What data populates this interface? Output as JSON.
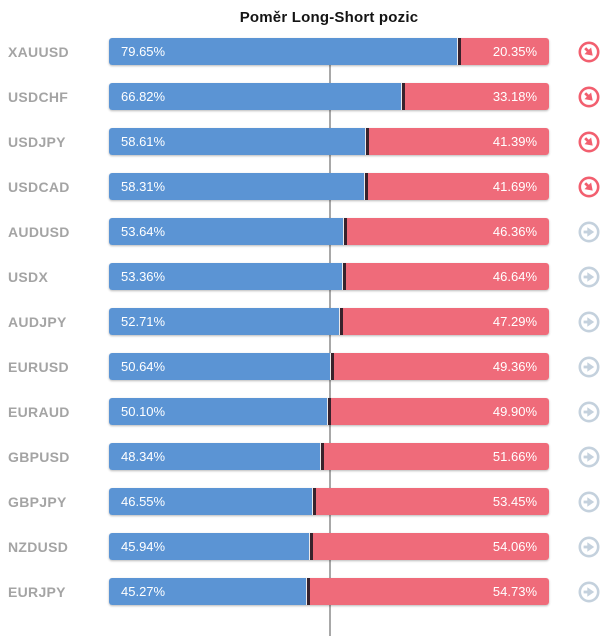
{
  "title": "Poměr Long-Short pozic",
  "colors": {
    "long": "#5b94d4",
    "short": "#ef6b7a",
    "divider": "#38222c",
    "centerline": "#a8a8a8",
    "label": "#a4a4a4",
    "icon_red": "#f25f6f",
    "icon_gray": "#c4d1dd"
  },
  "chart_data": {
    "type": "bar",
    "orientation": "horizontal",
    "stacked": true,
    "title": "Poměr Long-Short pozic",
    "xlim": [
      0,
      100
    ],
    "center_line": 50,
    "grid": false,
    "legend": false,
    "categories": [
      "XAUUSD",
      "USDCHF",
      "USDJPY",
      "USDCAD",
      "AUDUSD",
      "USDX",
      "AUDJPY",
      "EURUSD",
      "EURAUD",
      "GBPUSD",
      "GBPJPY",
      "NZDUSD",
      "EURJPY"
    ],
    "series": [
      {
        "name": "Long",
        "color": "#5b94d4",
        "values": [
          79.65,
          66.82,
          58.61,
          58.31,
          53.64,
          53.36,
          52.71,
          50.64,
          50.1,
          48.34,
          46.55,
          45.94,
          45.27
        ]
      },
      {
        "name": "Short",
        "color": "#ef6b7a",
        "values": [
          20.35,
          33.18,
          41.39,
          41.69,
          46.36,
          46.64,
          47.29,
          49.36,
          49.9,
          51.66,
          53.45,
          54.06,
          54.73
        ]
      }
    ],
    "rows": [
      {
        "symbol": "XAUUSD",
        "long_pct": 79.65,
        "short_pct": 20.35,
        "long_label": "79.65%",
        "short_label": "20.35%",
        "trend": "down"
      },
      {
        "symbol": "USDCHF",
        "long_pct": 66.82,
        "short_pct": 33.18,
        "long_label": "66.82%",
        "short_label": "33.18%",
        "trend": "down"
      },
      {
        "symbol": "USDJPY",
        "long_pct": 58.61,
        "short_pct": 41.39,
        "long_label": "58.61%",
        "short_label": "41.39%",
        "trend": "down"
      },
      {
        "symbol": "USDCAD",
        "long_pct": 58.31,
        "short_pct": 41.69,
        "long_label": "58.31%",
        "short_label": "41.69%",
        "trend": "down"
      },
      {
        "symbol": "AUDUSD",
        "long_pct": 53.64,
        "short_pct": 46.36,
        "long_label": "53.64%",
        "short_label": "46.36%",
        "trend": "neutral"
      },
      {
        "symbol": "USDX",
        "long_pct": 53.36,
        "short_pct": 46.64,
        "long_label": "53.36%",
        "short_label": "46.64%",
        "trend": "neutral"
      },
      {
        "symbol": "AUDJPY",
        "long_pct": 52.71,
        "short_pct": 47.29,
        "long_label": "52.71%",
        "short_label": "47.29%",
        "trend": "neutral"
      },
      {
        "symbol": "EURUSD",
        "long_pct": 50.64,
        "short_pct": 49.36,
        "long_label": "50.64%",
        "short_label": "49.36%",
        "trend": "neutral"
      },
      {
        "symbol": "EURAUD",
        "long_pct": 50.1,
        "short_pct": 49.9,
        "long_label": "50.10%",
        "short_label": "49.90%",
        "trend": "neutral"
      },
      {
        "symbol": "GBPUSD",
        "long_pct": 48.34,
        "short_pct": 51.66,
        "long_label": "48.34%",
        "short_label": "51.66%",
        "trend": "neutral"
      },
      {
        "symbol": "GBPJPY",
        "long_pct": 46.55,
        "short_pct": 53.45,
        "long_label": "46.55%",
        "short_label": "53.45%",
        "trend": "neutral"
      },
      {
        "symbol": "NZDUSD",
        "long_pct": 45.94,
        "short_pct": 54.06,
        "long_label": "45.94%",
        "short_label": "54.06%",
        "trend": "neutral"
      },
      {
        "symbol": "EURJPY",
        "long_pct": 45.27,
        "short_pct": 54.73,
        "long_label": "45.27%",
        "short_label": "54.73%",
        "trend": "neutral"
      }
    ]
  }
}
